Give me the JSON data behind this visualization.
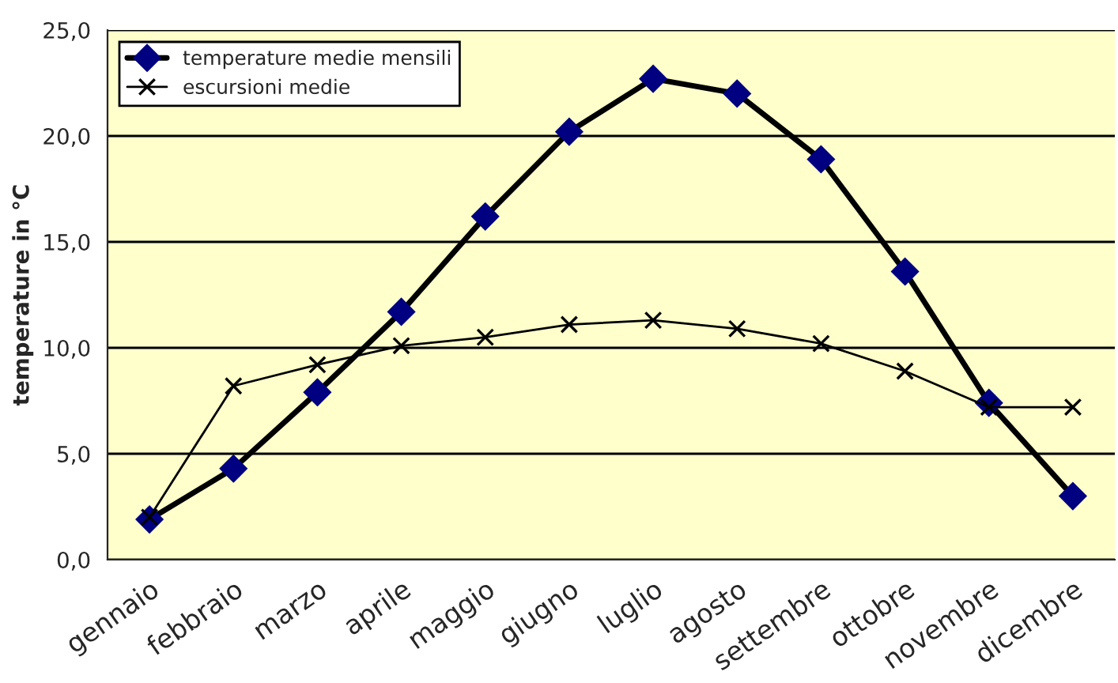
{
  "chart_data": {
    "type": "line",
    "ylabel": "temperature in °C",
    "categories": [
      "gennaio",
      "febbraio",
      "marzo",
      "aprile",
      "maggio",
      "giugno",
      "luglio",
      "agosto",
      "settembre",
      "ottobre",
      "novembre",
      "dicembre"
    ],
    "series": [
      {
        "name": "temperature medie mensili",
        "color": "#000080",
        "marker": "diamond",
        "values": [
          1.9,
          4.3,
          7.9,
          11.7,
          16.2,
          20.2,
          22.7,
          22.0,
          18.9,
          13.6,
          7.4,
          3.0
        ]
      },
      {
        "name": "escursioni medie",
        "color": "#000000",
        "marker": "cross",
        "values": [
          2.0,
          8.2,
          9.2,
          10.1,
          10.5,
          11.1,
          11.3,
          10.9,
          10.2,
          8.9,
          7.2,
          7.2
        ]
      }
    ],
    "ylim": [
      0,
      25
    ],
    "yticks": [
      {
        "value": 0,
        "label": "0,0"
      },
      {
        "value": 5,
        "label": "5,0"
      },
      {
        "value": 10,
        "label": "10,0"
      },
      {
        "value": 15,
        "label": "15,0"
      },
      {
        "value": 20,
        "label": "20,0"
      },
      {
        "value": 25,
        "label": "25,0"
      }
    ],
    "grid": "y",
    "legend": "top left",
    "line_style": "solid"
  }
}
